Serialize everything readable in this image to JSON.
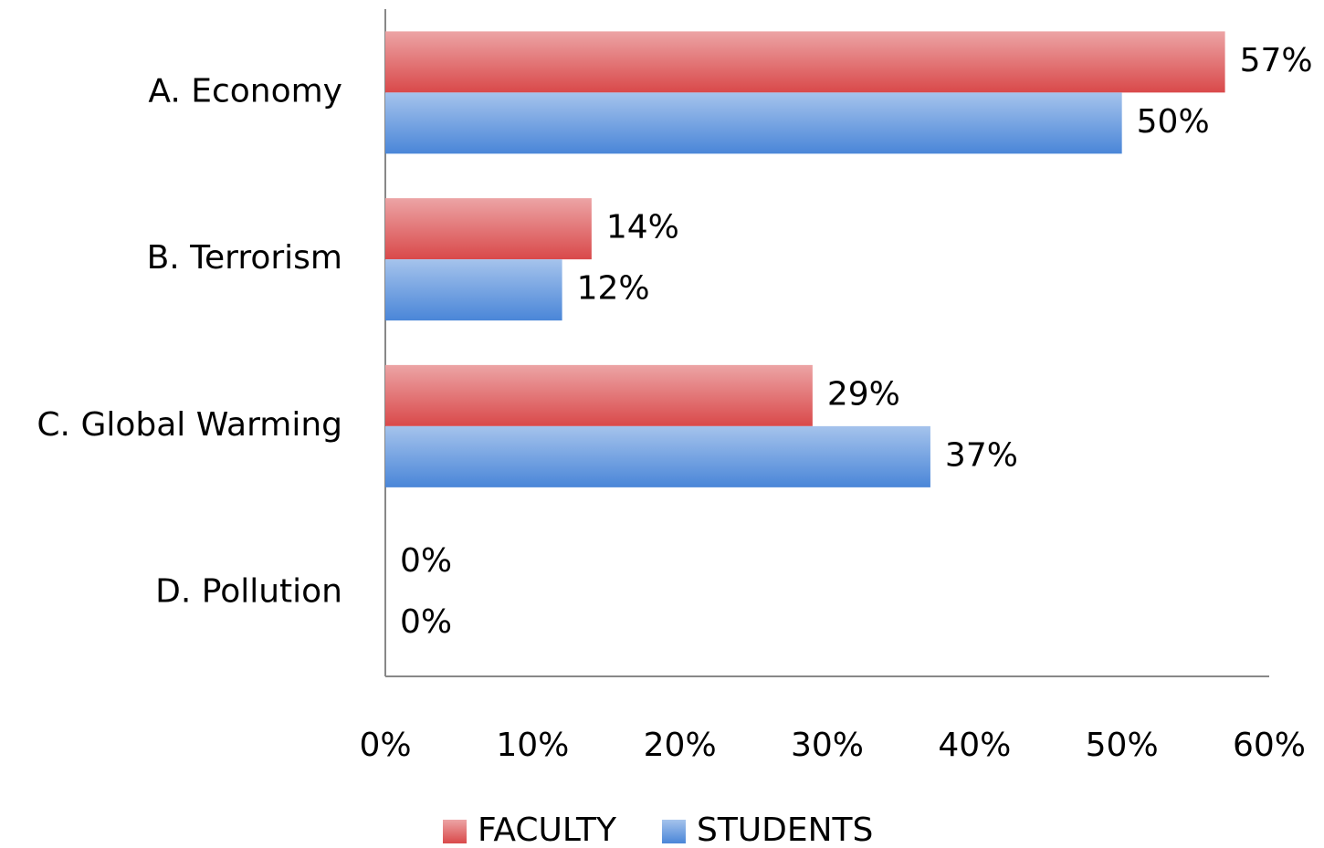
{
  "chart_data": {
    "type": "bar",
    "orientation": "horizontal",
    "categories": [
      "A. Economy",
      "B. Terrorism",
      "C. Global Warming",
      "D. Pollution"
    ],
    "series": [
      {
        "name": "FACULTY",
        "color": "#d9494a",
        "values": [
          57,
          14,
          29,
          0
        ],
        "value_labels": [
          "57%",
          "14%",
          "29%",
          "0%"
        ]
      },
      {
        "name": "STUDENTS",
        "color": "#4a86d8",
        "values": [
          50,
          12,
          37,
          0
        ],
        "value_labels": [
          "50%",
          "12%",
          "37%",
          "0%"
        ]
      }
    ],
    "xlim": [
      0,
      60
    ],
    "xticks": [
      {
        "value": 0,
        "label": "0%"
      },
      {
        "value": 10,
        "label": "10%"
      },
      {
        "value": 20,
        "label": "20%"
      },
      {
        "value": 30,
        "label": "30%"
      },
      {
        "value": 40,
        "label": "40%"
      },
      {
        "value": 50,
        "label": "50%"
      },
      {
        "value": 60,
        "label": "60%"
      }
    ],
    "legend": "bottom",
    "grid": false
  }
}
